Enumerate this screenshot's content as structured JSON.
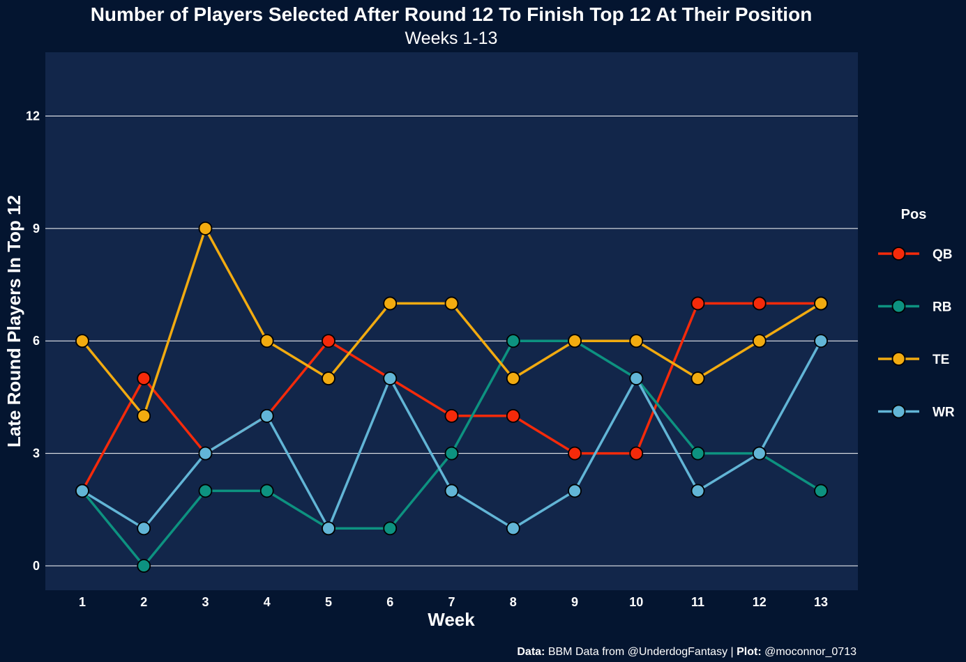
{
  "chart_data": {
    "type": "line",
    "title": "Number of Players Selected After Round 12 To Finish Top 12 At Their Position",
    "subtitle": "Weeks 1-13",
    "xlabel": "Week",
    "ylabel": "Late Round Players In Top 12",
    "x": [
      1,
      2,
      3,
      4,
      5,
      6,
      7,
      8,
      9,
      10,
      11,
      12,
      13
    ],
    "yticks": [
      0,
      3,
      6,
      9,
      12
    ],
    "ylim": [
      -0.65,
      13.7
    ],
    "grid": true,
    "legend": {
      "title": "Pos",
      "position": "right"
    },
    "series": [
      {
        "name": "QB",
        "color": "#f52a0a",
        "values": [
          2,
          5,
          3,
          4,
          6,
          5,
          4,
          4,
          3,
          3,
          7,
          7,
          7
        ]
      },
      {
        "name": "RB",
        "color": "#0d9280",
        "values": [
          2,
          0,
          2,
          2,
          1,
          1,
          3,
          6,
          6,
          5,
          3,
          3,
          2
        ]
      },
      {
        "name": "TE",
        "color": "#f2ab10",
        "values": [
          6,
          4,
          9,
          6,
          5,
          7,
          7,
          5,
          6,
          6,
          5,
          6,
          7
        ]
      },
      {
        "name": "WR",
        "color": "#62b5d6",
        "values": [
          2,
          1,
          3,
          4,
          1,
          5,
          2,
          1,
          2,
          5,
          2,
          3,
          6
        ]
      }
    ],
    "colors": {
      "background": "#041530",
      "panel": "#12264a",
      "grid": "#ffffff"
    }
  },
  "caption": {
    "data_label": "Data:",
    "data_text": "BBM Data from @UnderdogFantasy | ",
    "plot_label": "Plot:",
    "plot_text": "@moconnor_0713"
  }
}
